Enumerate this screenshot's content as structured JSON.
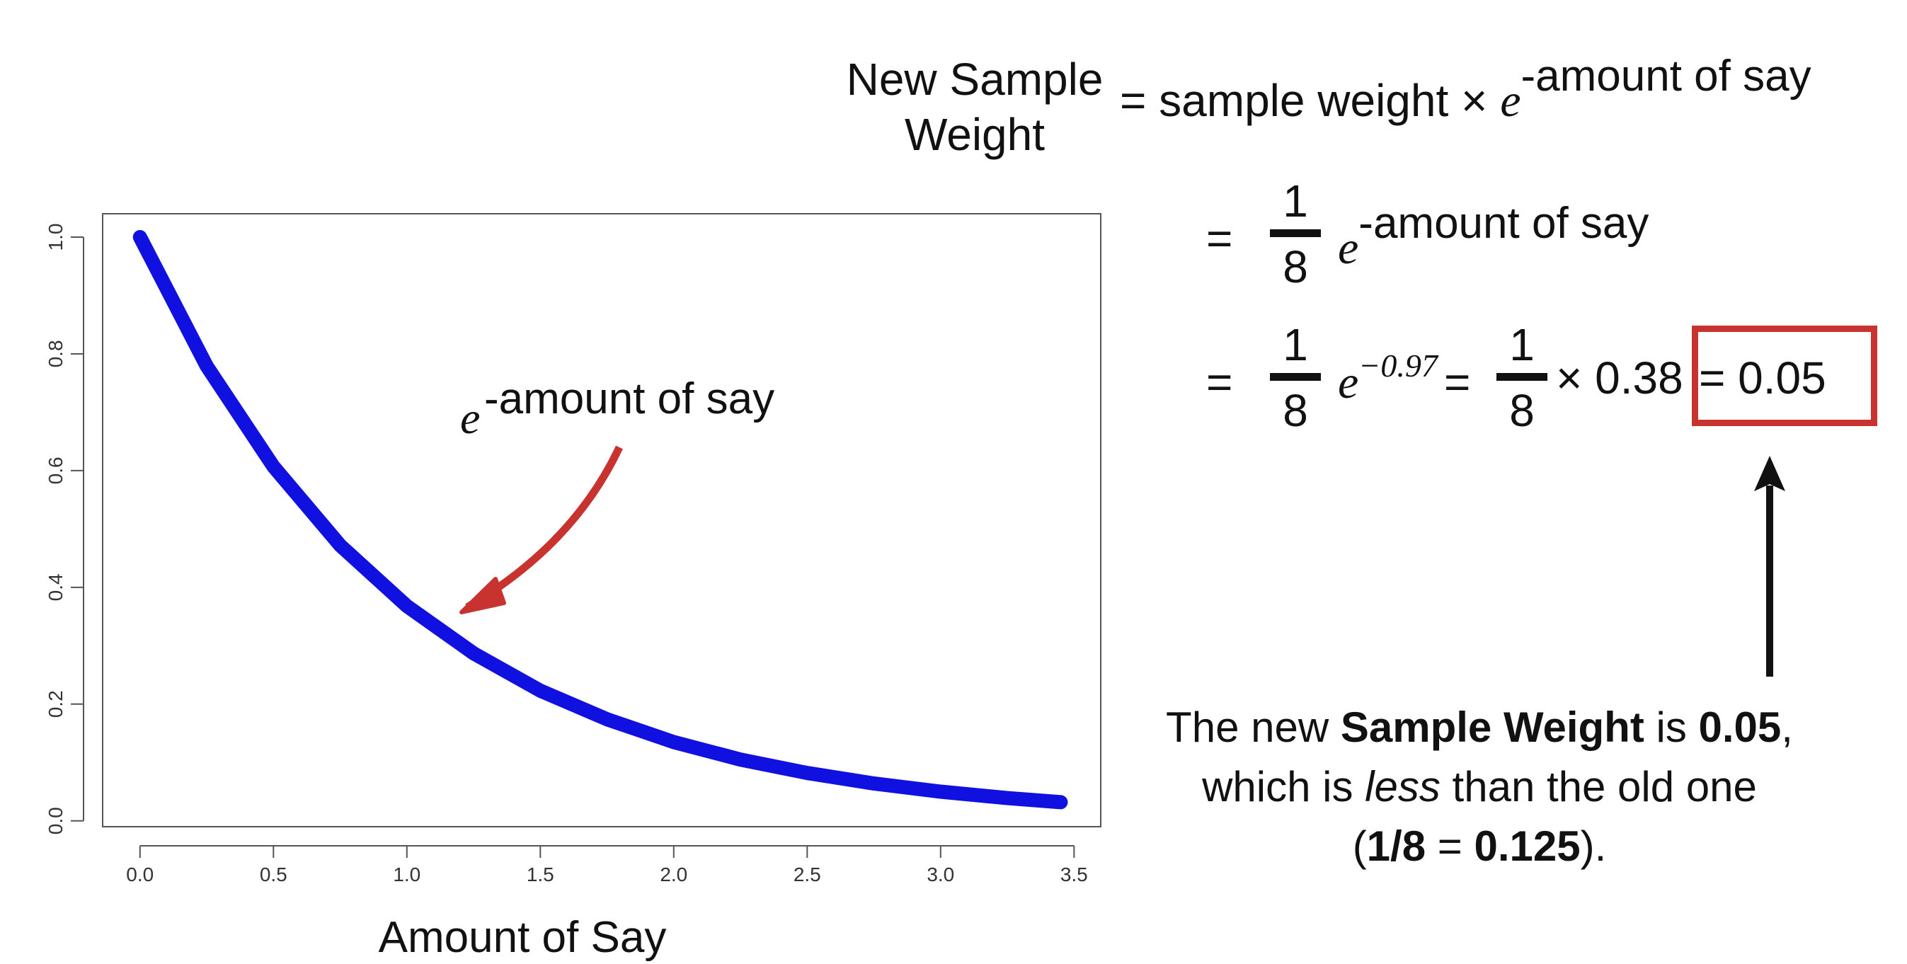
{
  "chart_data": {
    "type": "line",
    "title": "",
    "xlabel": "Amount of Say",
    "ylabel": "",
    "xlim": [
      -0.14,
      3.6
    ],
    "ylim": [
      -0.01,
      1.04
    ],
    "x_ticks": [
      "0.0",
      "0.5",
      "1.0",
      "1.5",
      "2.0",
      "2.5",
      "3.0",
      "3.5"
    ],
    "y_ticks": [
      "0.0",
      "0.2",
      "0.4",
      "0.6",
      "0.8",
      "1.0"
    ],
    "grid": false,
    "series": [
      {
        "color": "#1010e0",
        "x": [
          0.0,
          0.25,
          0.5,
          0.75,
          1.0,
          1.25,
          1.5,
          1.75,
          2.0,
          2.25,
          2.5,
          2.75,
          3.0,
          3.25,
          3.45
        ],
        "y": [
          1.0,
          0.779,
          0.607,
          0.472,
          0.368,
          0.287,
          0.223,
          0.174,
          0.135,
          0.105,
          0.082,
          0.064,
          0.05,
          0.039,
          0.032
        ]
      }
    ],
    "annotation": {
      "text_base": "e",
      "text_sup": "-amount of say",
      "arrow_color": "#c8322f"
    }
  },
  "formula": {
    "lhs_line1": "New Sample",
    "lhs_line2": "Weight",
    "line1_rhs": "= sample weight ×",
    "e": "e",
    "exp_amount": "-amount of say",
    "equals": "=",
    "frac_num": "1",
    "frac_den": "8",
    "exp_value": "−0.97",
    "times_value": "× 0.38",
    "result": "= 0.05",
    "highlight_color": "#c8322f"
  },
  "caption": {
    "line1_pre": "The new ",
    "line1_bold": "Sample Weight",
    "line1_mid": " is ",
    "line1_bold2": "0.05",
    "line1_post": ",",
    "line2_pre": "which is ",
    "line2_ital": "less",
    "line2_post": " than the old one",
    "line3_open": "(",
    "line3_bold1": "1/8",
    "line3_eq": " = ",
    "line3_bold2": "0.125",
    "line3_close": ")."
  }
}
